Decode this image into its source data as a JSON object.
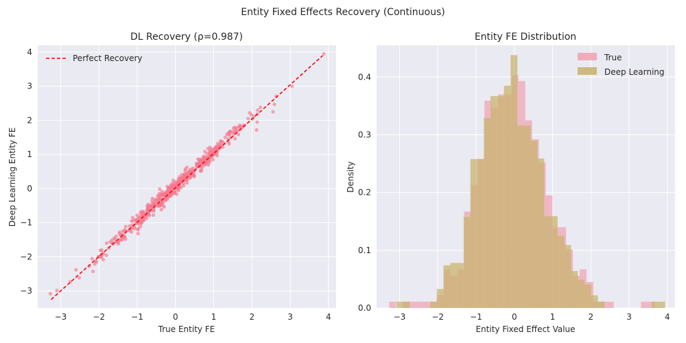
{
  "suptitle": "Entity Fixed Effects Recovery (Continuous)",
  "chart_data": [
    {
      "type": "scatter",
      "title": "DL Recovery (ρ=0.987)",
      "xlabel": "True Entity FE",
      "ylabel": "Deep Learning Entity FE",
      "xlim": [
        -3.6,
        4.2
      ],
      "ylim": [
        -3.5,
        4.2
      ],
      "xticks": [
        -3,
        -2,
        -1,
        0,
        1,
        2,
        3,
        4
      ],
      "yticks": [
        -3,
        -2,
        -1,
        0,
        1,
        2,
        3,
        4
      ],
      "xtick_labels": [
        "−3",
        "−2",
        "−1",
        "0",
        "1",
        "2",
        "3",
        "4"
      ],
      "ytick_labels": [
        "−3",
        "−2",
        "−1",
        "0",
        "1",
        "2",
        "3",
        "4"
      ],
      "grid": true,
      "legend": {
        "placement": "top-left",
        "entries": [
          "Perfect Recovery"
        ]
      },
      "reference_line": {
        "name": "Perfect Recovery",
        "x": [
          -3.25,
          3.85
        ],
        "y": [
          -3.25,
          3.9
        ],
        "color": "#ff0000",
        "style": "dashed"
      },
      "point_color": "#f47a8f",
      "point_count": 500,
      "points": [
        [
          -3.27,
          -3.08
        ],
        [
          -2.6,
          -2.38
        ],
        [
          -2.25,
          -2.28
        ],
        [
          -2.02,
          -2.0
        ],
        [
          -2.08,
          -2.12
        ],
        [
          -1.93,
          -1.8
        ],
        [
          -1.75,
          -1.75
        ],
        [
          -1.8,
          -1.6
        ],
        [
          -1.55,
          -1.4
        ],
        [
          -1.38,
          -1.25
        ],
        [
          -1.6,
          -1.45
        ],
        [
          -1.4,
          -1.35
        ],
        [
          -1.2,
          -1.1
        ],
        [
          -1.05,
          -0.92
        ],
        [
          -1.0,
          -0.78
        ],
        [
          -0.9,
          -0.68
        ],
        [
          -0.85,
          -0.85
        ],
        [
          -0.72,
          -0.55
        ],
        [
          -0.65,
          -0.5
        ],
        [
          -0.55,
          -0.42
        ],
        [
          -0.45,
          -0.35
        ],
        [
          -0.35,
          -0.2
        ],
        [
          -0.3,
          -0.3
        ],
        [
          -0.2,
          -0.05
        ],
        [
          -0.12,
          0.0
        ],
        [
          -0.05,
          0.05
        ],
        [
          0.0,
          0.08
        ],
        [
          0.1,
          0.15
        ],
        [
          0.15,
          0.3
        ],
        [
          0.2,
          0.25
        ],
        [
          0.3,
          0.4
        ],
        [
          0.38,
          0.5
        ],
        [
          0.45,
          0.6
        ],
        [
          0.55,
          0.62
        ],
        [
          0.62,
          0.75
        ],
        [
          0.7,
          0.8
        ],
        [
          0.8,
          0.92
        ],
        [
          0.9,
          1.02
        ],
        [
          1.0,
          1.1
        ],
        [
          1.1,
          1.25
        ],
        [
          1.2,
          1.38
        ],
        [
          1.3,
          1.5
        ],
        [
          1.45,
          1.5
        ],
        [
          1.55,
          1.7
        ],
        [
          1.65,
          1.8
        ],
        [
          1.8,
          1.85
        ],
        [
          1.9,
          2.05
        ],
        [
          2.05,
          2.12
        ],
        [
          2.15,
          2.3
        ],
        [
          2.22,
          2.38
        ],
        [
          2.12,
          1.72
        ],
        [
          2.55,
          2.25
        ],
        [
          3.05,
          3.0
        ],
        [
          3.88,
          3.95
        ],
        [
          0.98,
          0.85
        ]
      ]
    },
    {
      "type": "histogram",
      "title": "Entity FE Distribution",
      "xlabel": "Entity Fixed Effect Value",
      "ylabel": "Density",
      "xlim": [
        -3.6,
        4.2
      ],
      "ylim": [
        0,
        0.455
      ],
      "xticks": [
        -3,
        -2,
        -1,
        0,
        1,
        2,
        3,
        4
      ],
      "yticks": [
        0.0,
        0.1,
        0.2,
        0.3,
        0.4
      ],
      "xtick_labels": [
        "−3",
        "−2",
        "−1",
        "0",
        "1",
        "2",
        "3",
        "4"
      ],
      "ytick_labels": [
        "0.0",
        "0.1",
        "0.2",
        "0.3",
        "0.4"
      ],
      "grid": true,
      "legend": {
        "placement": "top-right",
        "entries": [
          "True",
          "Deep Learning"
        ]
      },
      "series": [
        {
          "name": "True",
          "color": "#f0a5b5",
          "bin_start": -3.27,
          "bin_width": 0.1778,
          "values": [
            0.011,
            0.0,
            0.011,
            0.011,
            0.011,
            0.011,
            0.011,
            0.022,
            0.067,
            0.056,
            0.067,
            0.167,
            0.213,
            0.258,
            0.359,
            0.347,
            0.37,
            0.37,
            0.403,
            0.393,
            0.325,
            0.292,
            0.252,
            0.195,
            0.14,
            0.14,
            0.101,
            0.056,
            0.067,
            0.045,
            0.011,
            0.011,
            0.011,
            0.0,
            0.0,
            0.0,
            0.0,
            0.011,
            0.011,
            0.0
          ]
        },
        {
          "name": "Deep Learning",
          "color": "#c9b46f",
          "bin_start": -3.08,
          "bin_width": 0.1755,
          "values": [
            0.011,
            0.011,
            0.0,
            0.0,
            0.0,
            0.011,
            0.033,
            0.074,
            0.078,
            0.078,
            0.158,
            0.258,
            0.258,
            0.329,
            0.367,
            0.367,
            0.385,
            0.438,
            0.316,
            0.316,
            0.29,
            0.259,
            0.159,
            0.159,
            0.125,
            0.109,
            0.064,
            0.049,
            0.041,
            0.022,
            0.011,
            0.0,
            0.0,
            0.0,
            0.0,
            0.0,
            0.0,
            0.0,
            0.011,
            0.011
          ]
        }
      ]
    }
  ]
}
